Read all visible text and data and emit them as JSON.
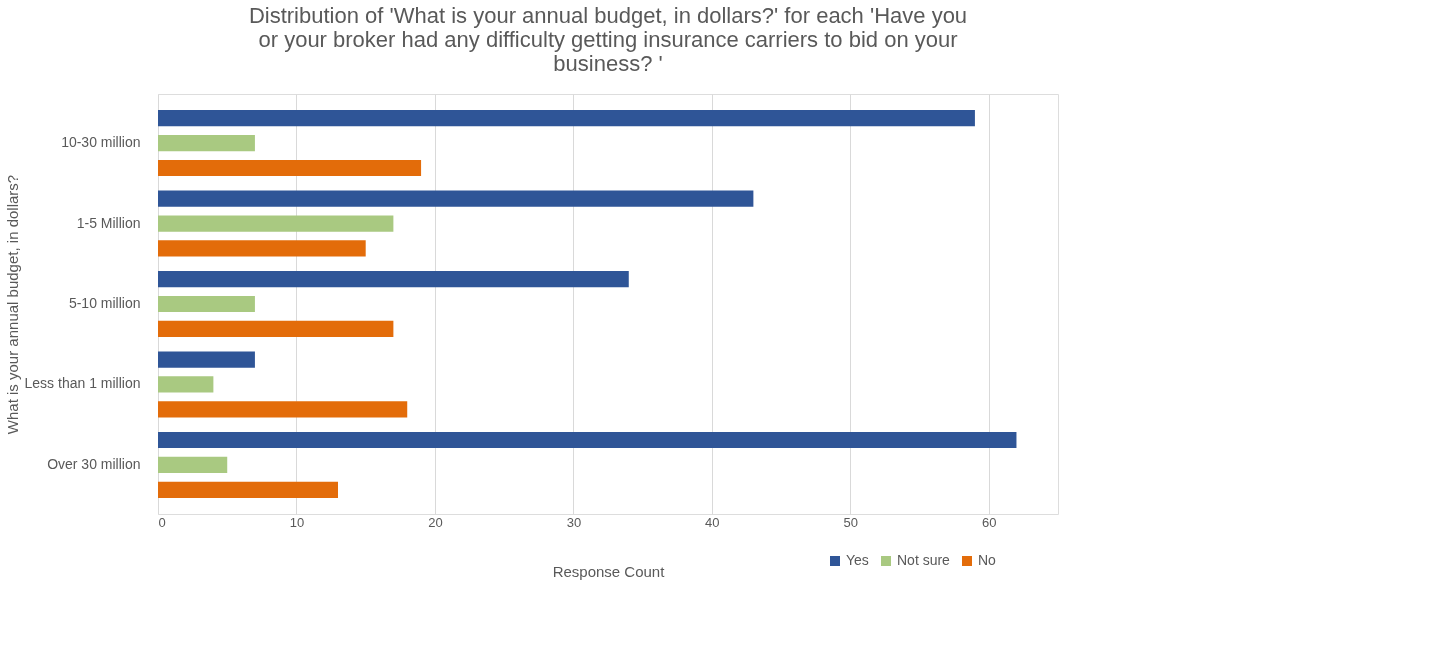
{
  "chart_data": {
    "type": "bar",
    "orientation": "horizontal",
    "title": "Distribution of 'What is your annual budget, in dollars?' for each 'Have you or your broker had any difficulty getting insurance carriers to bid on your business? '",
    "xlabel": "Response Count",
    "ylabel": "What is your annual budget, in dollars?",
    "categories": [
      "10-30 million",
      "1-5 Million",
      "5-10 million",
      "Less than 1 million",
      "Over 30 million"
    ],
    "series": [
      {
        "name": "Yes",
        "color": "#2f5597",
        "values": [
          59,
          43,
          34,
          7,
          62
        ]
      },
      {
        "name": "Not sure",
        "color": "#a9c981",
        "values": [
          7,
          17,
          7,
          4,
          5
        ]
      },
      {
        "name": "No",
        "color": "#e36c0a",
        "values": [
          19,
          15,
          17,
          18,
          13
        ]
      }
    ],
    "xlim": [
      0,
      65
    ],
    "xticks": [
      0,
      10,
      20,
      30,
      40,
      50,
      60
    ],
    "grid": "x",
    "legend": "bottom right"
  }
}
